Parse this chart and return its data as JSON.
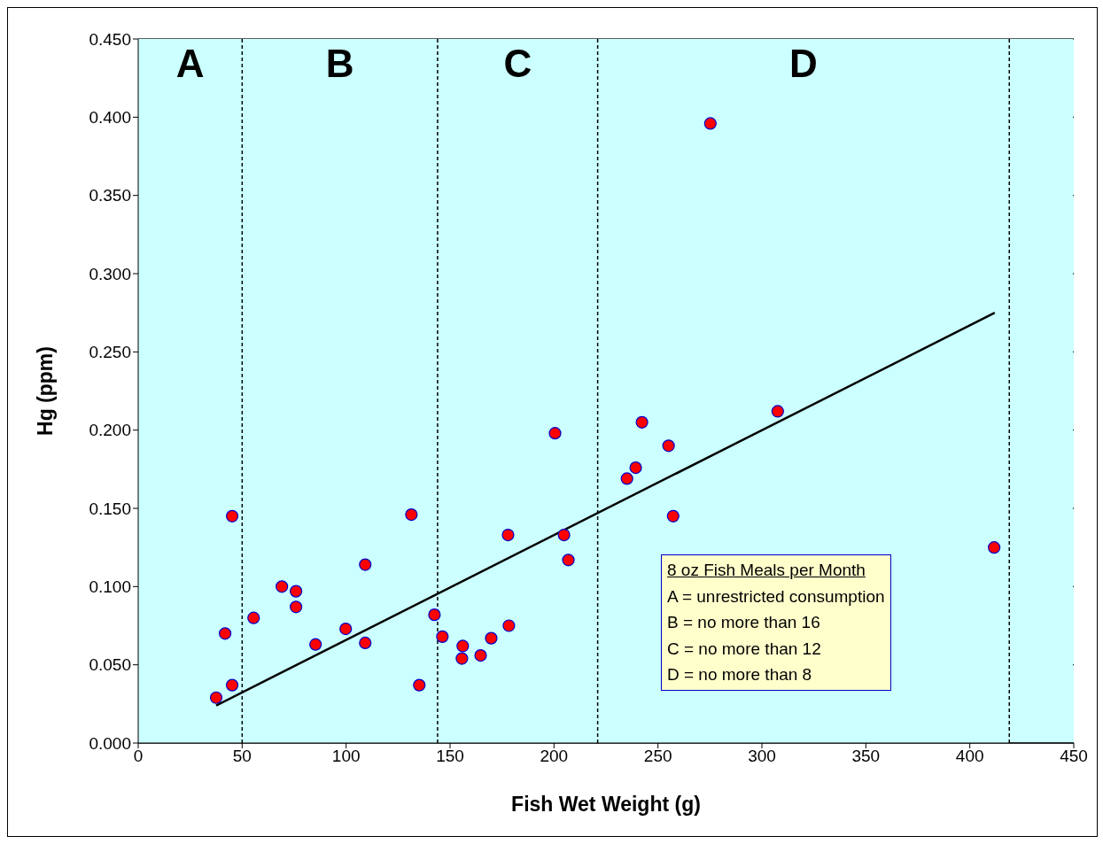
{
  "chart_data": {
    "type": "scatter",
    "xlabel": "Fish Wet Weight (g)",
    "ylabel": "Hg (ppm)",
    "xlim": [
      0,
      450
    ],
    "xticks": [
      0,
      50,
      100,
      150,
      200,
      250,
      300,
      350,
      400,
      450
    ],
    "ylim": [
      0,
      0.45
    ],
    "yticks": [
      {
        "value": 0,
        "label": "0.000"
      },
      {
        "value": 0.05,
        "label": "0.050"
      },
      {
        "value": 0.1,
        "label": "0.100"
      },
      {
        "value": 0.15,
        "label": "0.150"
      },
      {
        "value": 0.2,
        "label": "0.200"
      },
      {
        "value": 0.25,
        "label": "0.250"
      },
      {
        "value": 0.3,
        "label": "0.300"
      },
      {
        "value": 0.35,
        "label": "0.350"
      },
      {
        "value": 0.4,
        "label": "0.400"
      },
      {
        "value": 0.45,
        "label": "0.450"
      }
    ],
    "grid": "y",
    "legend": false,
    "series": [
      {
        "color": "#ff0000",
        "marker": "circle",
        "x": [
          37.5,
          41.8,
          45.2,
          45.2,
          55.5,
          69.1,
          75.9,
          75.9,
          85.3,
          99.8,
          109.2,
          109.2,
          131.4,
          135.2,
          142.5,
          146.3,
          156.1,
          155.7,
          164.7,
          169.8,
          177.9,
          178.3,
          200.5,
          204.8,
          206.9,
          235.1,
          239.3,
          242.3,
          255.1,
          257.3,
          275.2,
          307.6,
          411.7
        ],
        "values": [
          0.029,
          0.07,
          0.037,
          0.145,
          0.08,
          0.1,
          0.097,
          0.087,
          0.063,
          0.073,
          0.114,
          0.064,
          0.146,
          0.037,
          0.082,
          0.068,
          0.062,
          0.054,
          0.056,
          0.067,
          0.133,
          0.075,
          0.198,
          0.133,
          0.117,
          0.169,
          0.176,
          0.205,
          0.19,
          0.145,
          0.396,
          0.212,
          0.125
        ]
      },
      {
        "type": "line",
        "color": "#000000",
        "x": [
          37.5,
          412
        ],
        "values": [
          0.024,
          0.275
        ]
      }
    ],
    "ref_lines": [
      {
        "axis": "x",
        "value": 50,
        "color": "#000000",
        "line_style": "dashed"
      },
      {
        "axis": "x",
        "value": 144,
        "color": "#000000",
        "line_style": "dashed"
      },
      {
        "axis": "x",
        "value": 221,
        "color": "#000000",
        "line_style": "dashed"
      },
      {
        "axis": "x",
        "value": 419,
        "color": "#000000",
        "line_style": "dashed"
      }
    ],
    "bands": [
      {
        "axis": "x",
        "from": 0,
        "to": 50,
        "label": "A",
        "color": "#ccffff"
      },
      {
        "axis": "x",
        "from": 50,
        "to": 144,
        "label": "B",
        "color": "#ccffff"
      },
      {
        "axis": "x",
        "from": 144,
        "to": 221,
        "label": "C",
        "color": "#ccffff"
      },
      {
        "axis": "x",
        "from": 221,
        "to": 419,
        "label": "D",
        "color": "#ccffff"
      }
    ],
    "annotations": [
      "8 oz Fish Meals per Month",
      "A = unrestricted consumption",
      "B = no more than 16",
      "C = no more than 12",
      "D = no more than 8"
    ]
  }
}
